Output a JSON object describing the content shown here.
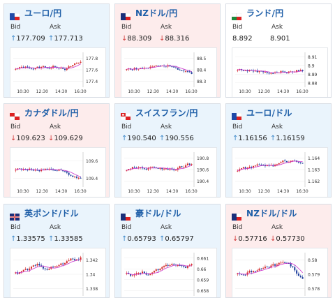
{
  "cards": [
    {
      "pair": "ユーロ/円",
      "state": "up",
      "flag": "eu",
      "bid": "177.709",
      "ask": "177.713",
      "bid_dir": "up",
      "ask_dir": "up",
      "y_ticks": [
        "177.8",
        "177.6",
        "177.4"
      ],
      "x_ticks": [
        "10:30",
        "12:30",
        "14:30",
        "16:30"
      ]
    },
    {
      "pair": "NZドル/円",
      "state": "down",
      "flag": "nz",
      "bid": "88.309",
      "ask": "88.316",
      "bid_dir": "down",
      "ask_dir": "down",
      "y_ticks": [
        "88.5",
        "88.4",
        "88.3"
      ],
      "x_ticks": [
        "10:30",
        "12:30",
        "14:30",
        "16:30"
      ]
    },
    {
      "pair": "ランド/円",
      "state": "neutral",
      "flag": "za",
      "bid": "8.892",
      "ask": "8.901",
      "bid_dir": "none",
      "ask_dir": "none",
      "y_ticks": [
        "8.91",
        "8.9",
        "8.89",
        "8.88"
      ],
      "x_ticks": [
        "10:30",
        "12:30",
        "14:30",
        "16:30"
      ]
    },
    {
      "pair": "カナダドル/円",
      "state": "down",
      "flag": "ca",
      "bid": "109.623",
      "ask": "109.629",
      "bid_dir": "down",
      "ask_dir": "down",
      "y_ticks": [
        "109.6",
        "109.4"
      ],
      "x_ticks": [
        "10:30",
        "12:30",
        "14:30",
        "16:30"
      ]
    },
    {
      "pair": "スイスフラン/円",
      "state": "up",
      "flag": "ch",
      "bid": "190.540",
      "ask": "190.556",
      "bid_dir": "up",
      "ask_dir": "up",
      "y_ticks": [
        "190.8",
        "190.6",
        "190.4"
      ],
      "x_ticks": [
        "10:30",
        "12:30",
        "14:30",
        "16:30"
      ]
    },
    {
      "pair": "ユーロ/ドル",
      "state": "up",
      "flag": "eu",
      "bid": "1.16156",
      "ask": "1.16159",
      "bid_dir": "up",
      "ask_dir": "up",
      "y_ticks": [
        "1.164",
        "1.163",
        "1.162"
      ],
      "x_ticks": [
        "10:30",
        "12:30",
        "14:30",
        "16:30"
      ]
    },
    {
      "pair": "英ポンド/ドル",
      "state": "up",
      "flag": "gb",
      "bid": "1.33575",
      "ask": "1.33585",
      "bid_dir": "up",
      "ask_dir": "up",
      "y_ticks": [
        "1.342",
        "1.34",
        "1.338"
      ],
      "x_ticks": []
    },
    {
      "pair": "豪ドル/ドル",
      "state": "up",
      "flag": "au",
      "bid": "0.65793",
      "ask": "0.65797",
      "bid_dir": "up",
      "ask_dir": "up",
      "y_ticks": [
        "0.661",
        "0.66",
        "0.659",
        "0.658"
      ],
      "x_ticks": []
    },
    {
      "pair": "NZドル/ドル",
      "state": "down",
      "flag": "nz",
      "bid": "0.57716",
      "ask": "0.57730",
      "bid_dir": "down",
      "ask_dir": "down",
      "y_ticks": [
        "0.58",
        "0.579",
        "0.578"
      ],
      "x_ticks": []
    }
  ],
  "labels": {
    "bid": "Bid",
    "ask": "Ask"
  },
  "colors": {
    "up_bg": "#eaf4fc",
    "down_bg": "#fdecec",
    "title": "#1f5fa8",
    "candle_up": "#d42a2a",
    "candle_down": "#1c3d9c",
    "ma": "#cc33cc"
  },
  "icons": {
    "up": "↑",
    "down": "↓"
  }
}
